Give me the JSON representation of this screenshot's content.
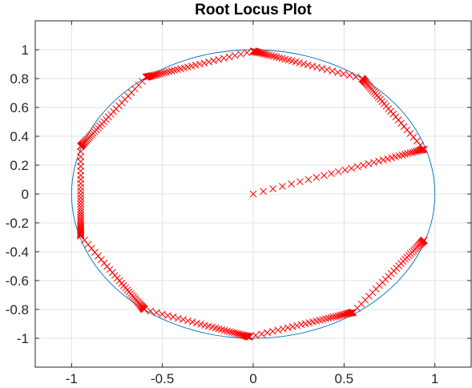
{
  "chart_data": {
    "type": "scatter",
    "title": "Root Locus Plot",
    "xlabel": "",
    "ylabel": "",
    "xlim": [
      -1.2,
      1.2
    ],
    "ylim": [
      -1.2,
      1.2
    ],
    "xticks": [
      -1,
      -0.5,
      0,
      0.5,
      1
    ],
    "xtick_labels": [
      "-1",
      "-0.5",
      "0",
      "0.5",
      "1"
    ],
    "yticks": [
      1,
      0.8,
      0.6,
      0.4,
      0.2,
      0,
      -0.2,
      -0.4,
      -0.6,
      -0.8,
      -1
    ],
    "ytick_labels": [
      "1",
      "0.8",
      "0.6",
      "0.4",
      "0.2",
      "0",
      "-0.2",
      "-0.4",
      "-0.6",
      "-0.8",
      "-1"
    ],
    "grid": true,
    "unit_circle": {
      "center": [
        0,
        0
      ],
      "radius": 1,
      "color": "#0072BD"
    },
    "marker": "x",
    "marker_color": "#FF0000",
    "branches": [
      {
        "from": [
          0.0,
          0.0
        ],
        "to": [
          0.94,
          0.31
        ]
      },
      {
        "from": [
          0.94,
          0.31
        ],
        "to": [
          0.6,
          0.8
        ]
      },
      {
        "from": [
          0.6,
          0.8
        ],
        "to": [
          0.0,
          0.99
        ]
      },
      {
        "from": [
          0.0,
          0.99
        ],
        "to": [
          -0.59,
          0.81
        ]
      },
      {
        "from": [
          -0.59,
          0.81
        ],
        "to": [
          -0.95,
          0.33
        ]
      },
      {
        "from": [
          -0.95,
          0.33
        ],
        "to": [
          -0.95,
          -0.29
        ]
      },
      {
        "from": [
          -0.95,
          -0.29
        ],
        "to": [
          -0.6,
          -0.8
        ]
      },
      {
        "from": [
          -0.6,
          -0.8
        ],
        "to": [
          -0.02,
          -0.99
        ]
      },
      {
        "from": [
          -0.02,
          -0.99
        ],
        "to": [
          0.55,
          -0.82
        ]
      },
      {
        "from": [
          0.55,
          -0.82
        ],
        "to": [
          0.94,
          -0.32
        ]
      }
    ]
  }
}
